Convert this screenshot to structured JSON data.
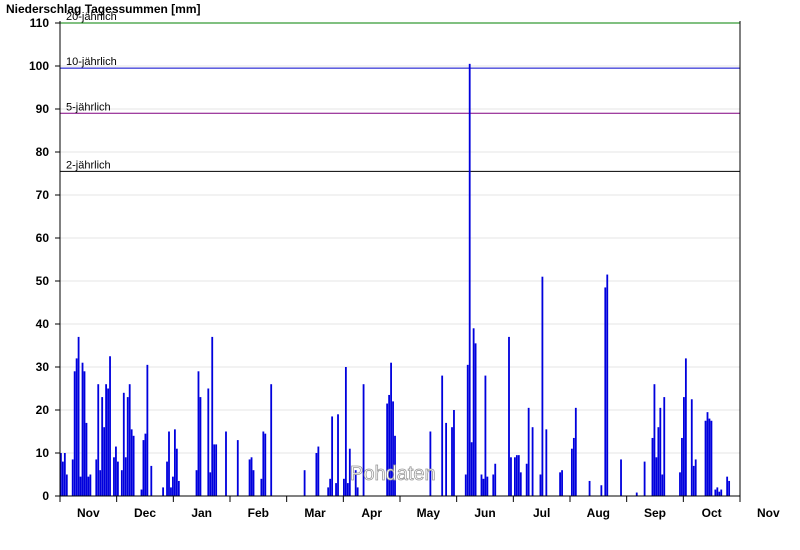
{
  "chart_data": {
    "type": "bar",
    "title": "Niederschlag Tagessummen [mm]",
    "ylim": [
      0,
      110
    ],
    "yticks": [
      0,
      10,
      20,
      30,
      40,
      50,
      60,
      70,
      80,
      90,
      100,
      110
    ],
    "months": [
      "Nov",
      "Dec",
      "Jan",
      "Feb",
      "Mar",
      "Apr",
      "May",
      "Jun",
      "Jul",
      "Aug",
      "Sep",
      "Oct",
      "Nov"
    ],
    "grid": true,
    "bar_color": "#0000dd",
    "reference_lines": [
      {
        "label": "20-jährlich",
        "value": 110,
        "color": "#008000"
      },
      {
        "label": "10-jährlich",
        "value": 99.5,
        "color": "#0000cc"
      },
      {
        "label": "5-jährlich",
        "value": 89,
        "color": "#800080"
      },
      {
        "label": "2-jährlich",
        "value": 75.5,
        "color": "#000000"
      }
    ],
    "watermark": "Pohdaten",
    "day_values": [
      10,
      8,
      10,
      5,
      0,
      0,
      8.5,
      29,
      32,
      37,
      4.5,
      31,
      29,
      17,
      4.5,
      5,
      0,
      0,
      8.5,
      26,
      6,
      23,
      16,
      26,
      25,
      32.5,
      0,
      9,
      11.5,
      8,
      0,
      6,
      24,
      9,
      23,
      26,
      15.5,
      14,
      0,
      0,
      0,
      1.5,
      13,
      14.5,
      30.5,
      0,
      7,
      0,
      0,
      0,
      0,
      0,
      2,
      0,
      8,
      15,
      2,
      4.5,
      15.5,
      11,
      3.5,
      0,
      0,
      0,
      0,
      0,
      0,
      0,
      0,
      6,
      29,
      23,
      0,
      0,
      0,
      25,
      5.5,
      37,
      12,
      12,
      0,
      0,
      0,
      0,
      15,
      0,
      0,
      0,
      0,
      0,
      13,
      0,
      0,
      0,
      0,
      0,
      8.5,
      9,
      6,
      0,
      0,
      0,
      4,
      15,
      14.5,
      0,
      0,
      26,
      0,
      0,
      0,
      0,
      0,
      0,
      0,
      0,
      0,
      0,
      0,
      0,
      0,
      0,
      0,
      0,
      6,
      0,
      0,
      0,
      0,
      0,
      10,
      11.5,
      0,
      0,
      0,
      0,
      2,
      4,
      18.5,
      0,
      3,
      19,
      0,
      0,
      4,
      30,
      3,
      11,
      0,
      0,
      6,
      2,
      0,
      0,
      26,
      0,
      0,
      0,
      0,
      0,
      0,
      0,
      0,
      0,
      0,
      0,
      21.5,
      23.5,
      31,
      22,
      14,
      0,
      0,
      0,
      0,
      0,
      0,
      0,
      0,
      0,
      0,
      0,
      0,
      0,
      0,
      0,
      0,
      0,
      15,
      0,
      0,
      0,
      0,
      0,
      28,
      0,
      17,
      0,
      0,
      16,
      20,
      0,
      0,
      0,
      0,
      0,
      5,
      30.5,
      100.5,
      12.5,
      39,
      35.5,
      0,
      0,
      5,
      4,
      28,
      4.5,
      0,
      0,
      5,
      7.5,
      0,
      0,
      0,
      0,
      0,
      0,
      37,
      9,
      0,
      9,
      9.5,
      9.5,
      5.5,
      0,
      0,
      7.5,
      20.5,
      0,
      16,
      0,
      0,
      0,
      5,
      51,
      0,
      15.5,
      0,
      0,
      0,
      0,
      0,
      0,
      5.5,
      6,
      0,
      0,
      0,
      0,
      11,
      13.5,
      20.5,
      0,
      0,
      0,
      0,
      0,
      0,
      3.5,
      0,
      0,
      0,
      0,
      0,
      2.5,
      0,
      48.5,
      51.5,
      0,
      0,
      0,
      0,
      0,
      0,
      8.5,
      0,
      0,
      0,
      0,
      0,
      0,
      0,
      0.8,
      0,
      0,
      0,
      8,
      0,
      0,
      0,
      13.5,
      26,
      9,
      16,
      20.5,
      5,
      23,
      0,
      0,
      0,
      0,
      0,
      0,
      0,
      5.5,
      13.5,
      23,
      32,
      0,
      0,
      22.5,
      7,
      8.5,
      0,
      0,
      0,
      0,
      17.5,
      19.5,
      18,
      17.5,
      0,
      1.5,
      2,
      1,
      1.5,
      0,
      0,
      4.5,
      3.5,
      0,
      0,
      0,
      0,
      0
    ]
  }
}
